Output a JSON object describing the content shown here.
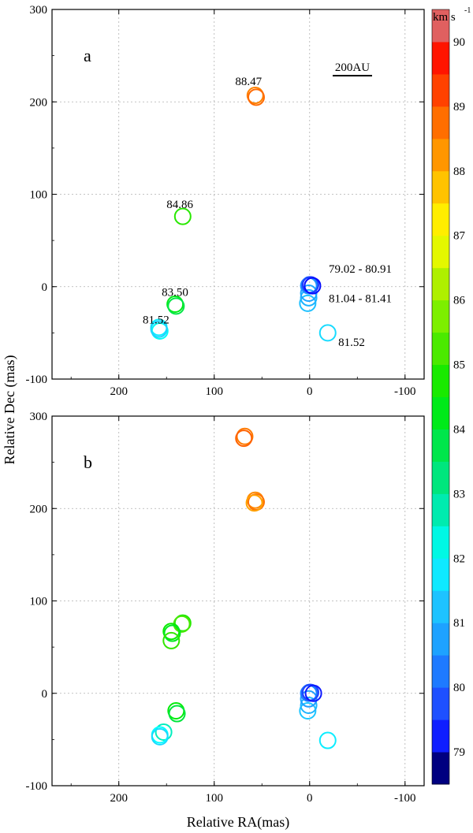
{
  "chart_data": [
    {
      "type": "scatter",
      "panel_label": "a",
      "xlabel": "",
      "ylabel": "",
      "xlim": [
        270,
        -120
      ],
      "ylim": [
        -100,
        300
      ],
      "xticks": [
        "200",
        "100",
        "0",
        "-100"
      ],
      "yticks": [
        "-100",
        "0",
        "100",
        "200",
        "300"
      ],
      "grid": true,
      "scalebar_label": "200AU",
      "points": [
        {
          "x": 57,
          "y": 207,
          "v": 88.5
        },
        {
          "x": 56,
          "y": 205,
          "v": 88.8
        },
        {
          "x": 133,
          "y": 76,
          "v": 84.9
        },
        {
          "x": 141,
          "y": -19,
          "v": 84.3
        },
        {
          "x": 140,
          "y": -21,
          "v": 83.8
        },
        {
          "x": 158,
          "y": -44,
          "v": 81.8
        },
        {
          "x": 157,
          "y": -48,
          "v": 82.1
        },
        {
          "x": 158,
          "y": -46,
          "v": 81.5
        },
        {
          "x": -19,
          "y": -50,
          "v": 81.6
        },
        {
          "x": 2,
          "y": -18,
          "v": 81.2
        },
        {
          "x": 1,
          "y": -12,
          "v": 81.0
        },
        {
          "x": 1,
          "y": -7,
          "v": 80.8
        },
        {
          "x": 1,
          "y": 1,
          "v": 80.6
        },
        {
          "x": 0,
          "y": 2,
          "v": 80.2
        },
        {
          "x": -1,
          "y": 2,
          "v": 79.5
        },
        {
          "x": -3,
          "y": 1,
          "v": 79.1
        }
      ],
      "annotations": [
        {
          "text": "88.47",
          "x": 78,
          "y": 218
        },
        {
          "text": "84.86",
          "x": 150,
          "y": 85
        },
        {
          "text": "83.50",
          "x": 155,
          "y": -10
        },
        {
          "text": "81.52",
          "x": 175,
          "y": -40
        },
        {
          "text": "79.02 - 80.91",
          "x": -20,
          "y": 15
        },
        {
          "text": "81.04 - 81.41",
          "x": -20,
          "y": -17
        },
        {
          "text": "81.52",
          "x": -30,
          "y": -64
        }
      ]
    },
    {
      "type": "scatter",
      "panel_label": "b",
      "xlabel": "Relative RA(mas)",
      "ylabel": "",
      "xlim": [
        270,
        -120
      ],
      "ylim": [
        -100,
        300
      ],
      "xticks": [
        "200",
        "100",
        "0",
        "-100"
      ],
      "yticks": [
        "-100",
        "0",
        "100",
        "200",
        "300"
      ],
      "grid": true,
      "points": [
        {
          "x": 68,
          "y": 278,
          "v": 88.6
        },
        {
          "x": 69,
          "y": 276,
          "v": 88.9
        },
        {
          "x": 57,
          "y": 209,
          "v": 88.4
        },
        {
          "x": 56,
          "y": 207,
          "v": 88.7
        },
        {
          "x": 58,
          "y": 206,
          "v": 88.1
        },
        {
          "x": 133,
          "y": 76,
          "v": 84.8
        },
        {
          "x": 134,
          "y": 75,
          "v": 85.2
        },
        {
          "x": 145,
          "y": 67,
          "v": 84.6
        },
        {
          "x": 144,
          "y": 65,
          "v": 84.2
        },
        {
          "x": 145,
          "y": 57,
          "v": 85.0
        },
        {
          "x": 140,
          "y": -19,
          "v": 84.4
        },
        {
          "x": 139,
          "y": -22,
          "v": 83.9
        },
        {
          "x": 153,
          "y": -42,
          "v": 82.6
        },
        {
          "x": 157,
          "y": -45,
          "v": 82.0
        },
        {
          "x": 157,
          "y": -47,
          "v": 81.6
        },
        {
          "x": -19,
          "y": -51,
          "v": 81.8
        },
        {
          "x": 2,
          "y": -19,
          "v": 81.3
        },
        {
          "x": 1,
          "y": -13,
          "v": 81.0
        },
        {
          "x": 1,
          "y": -6,
          "v": 80.7
        },
        {
          "x": 1,
          "y": 0,
          "v": 80.4
        },
        {
          "x": 0,
          "y": 1,
          "v": 80.1
        },
        {
          "x": -1,
          "y": 1,
          "v": 79.6
        },
        {
          "x": -4,
          "y": 0,
          "v": 79.2
        }
      ],
      "annotations": []
    }
  ],
  "shared_ylabel": "Relative Dec (mas)",
  "colorbar": {
    "unit_label": "km s",
    "unit_exponent": "-1",
    "min": 78.5,
    "max": 90.5,
    "ticks": [
      "79",
      "80",
      "81",
      "82",
      "83",
      "84",
      "85",
      "86",
      "87",
      "88",
      "89",
      "90"
    ],
    "stops": [
      {
        "v": 78.5,
        "color": "#000000"
      },
      {
        "v": 79.0,
        "color": "#0000ff"
      },
      {
        "v": 79.5,
        "color": "#1e3cff"
      },
      {
        "v": 80.0,
        "color": "#1e64ff"
      },
      {
        "v": 80.5,
        "color": "#1e90ff"
      },
      {
        "v": 81.0,
        "color": "#1eb4ff"
      },
      {
        "v": 81.5,
        "color": "#1ed2ff"
      },
      {
        "v": 82.0,
        "color": "#00ffff"
      },
      {
        "v": 82.5,
        "color": "#00f0c8"
      },
      {
        "v": 83.0,
        "color": "#00e696"
      },
      {
        "v": 83.5,
        "color": "#00e664"
      },
      {
        "v": 84.0,
        "color": "#00e632"
      },
      {
        "v": 84.5,
        "color": "#00ee00"
      },
      {
        "v": 85.0,
        "color": "#32e600"
      },
      {
        "v": 85.5,
        "color": "#64ee00"
      },
      {
        "v": 86.0,
        "color": "#96f000"
      },
      {
        "v": 86.5,
        "color": "#c8f000"
      },
      {
        "v": 87.0,
        "color": "#ffff00"
      },
      {
        "v": 87.5,
        "color": "#ffdc00"
      },
      {
        "v": 88.0,
        "color": "#ffaa00"
      },
      {
        "v": 88.5,
        "color": "#ff8200"
      },
      {
        "v": 89.0,
        "color": "#ff5a00"
      },
      {
        "v": 89.5,
        "color": "#ff2800"
      },
      {
        "v": 90.0,
        "color": "#ff0000"
      },
      {
        "v": 90.5,
        "color": "#c0c0c0"
      }
    ]
  }
}
